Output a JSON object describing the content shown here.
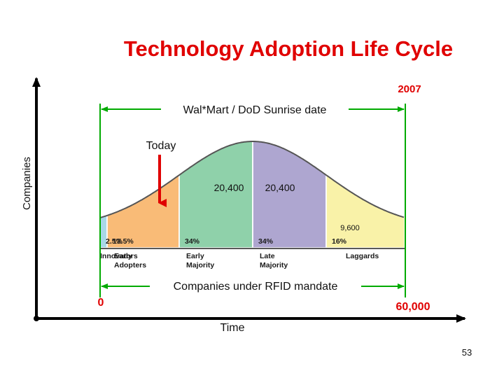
{
  "page_number": "53",
  "colors": {
    "title": "#e00000",
    "guide_line": "#00aa00",
    "today_arrow": "#e00000",
    "segment_fills": [
      "#a9d8e8",
      "#f9bb77",
      "#8fd1aa",
      "#aea6d0",
      "#f9f2a8"
    ]
  },
  "chart_data": {
    "type": "area",
    "title": "Technology Adoption Life Cycle",
    "xlabel": "Time",
    "ylabel": "Companies",
    "x_range": [
      "0",
      "60,000"
    ],
    "grid": false,
    "legend": "none",
    "segments": [
      {
        "name": "Innovators",
        "label": "Innovators",
        "percent_label": "2.5%",
        "percent": 2.5
      },
      {
        "name": "Early Adopters",
        "label": "Early\nAdopters",
        "percent_label": "13.5%",
        "percent": 13.5
      },
      {
        "name": "Early Majority",
        "label": "Early\nMajority",
        "percent_label": "34%",
        "percent": 34
      },
      {
        "name": "Late Majority",
        "label": "Late\nMajority",
        "percent_label": "34%",
        "percent": 34
      },
      {
        "name": "Laggards",
        "label": "Laggards",
        "percent_label": "16%",
        "percent": 16
      }
    ],
    "value_labels": {
      "early_majority": "20,400",
      "late_majority": "20,400",
      "laggards": "9,600"
    },
    "annotations": {
      "year": "2007",
      "sunrise": "Wal*Mart / DoD Sunrise date",
      "today": "Today",
      "mandate": "Companies under RFID mandate",
      "start": "0",
      "end": "60,000"
    }
  }
}
